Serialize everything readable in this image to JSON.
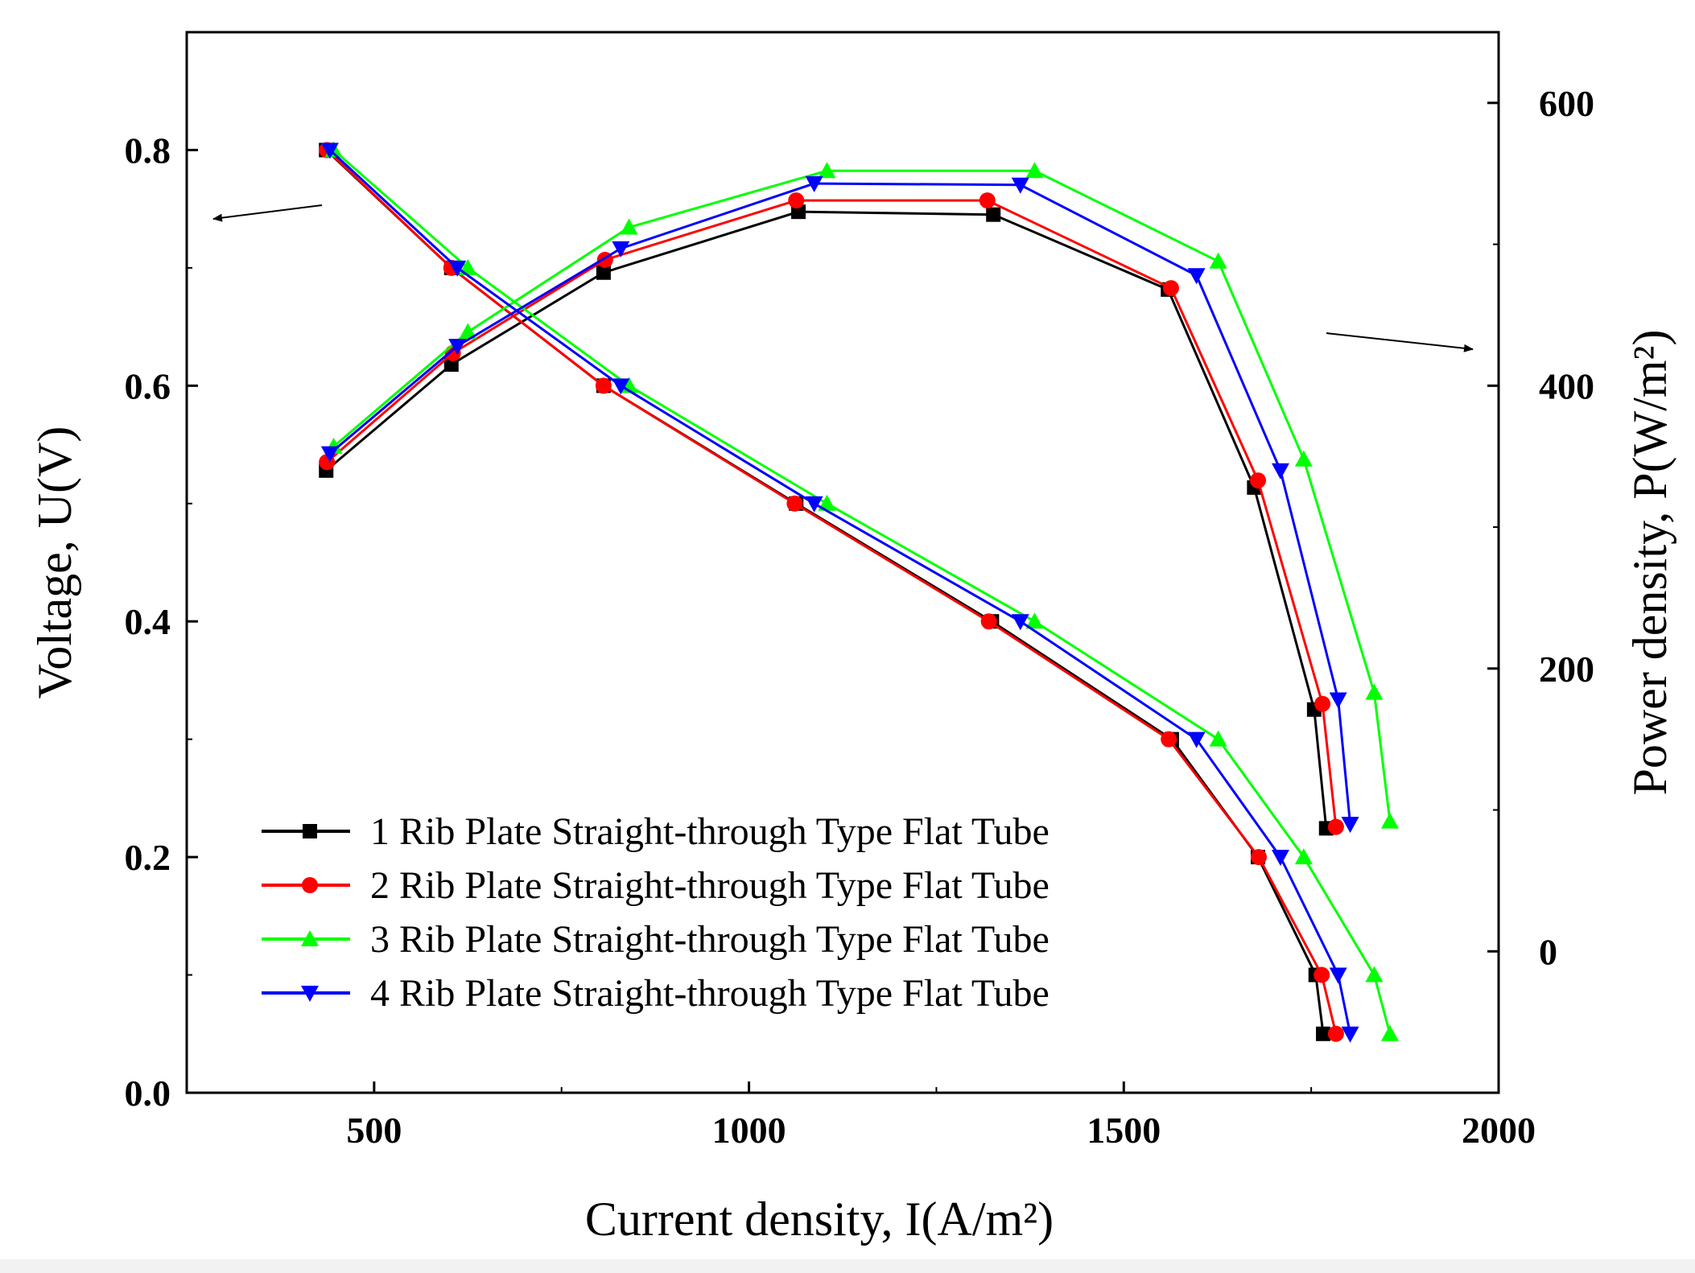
{
  "chart_data": {
    "type": "line",
    "xlabel": "Current density, I(A/m²)",
    "ylabel_left": "Voltage, U(V)",
    "ylabel_right": "Power density, P(W/m²)",
    "xlim": [
      250,
      2000
    ],
    "ylim_left": [
      0,
      0.9
    ],
    "ylim_right": [
      -100,
      650
    ],
    "x_ticks": [
      500,
      1000,
      1500,
      2000
    ],
    "y_left_ticks": [
      0.0,
      0.2,
      0.4,
      0.6,
      0.8
    ],
    "y_right_ticks": [
      0,
      200,
      400,
      600
    ],
    "x_tick_labels": [
      "500",
      "1000",
      "1500",
      "2000"
    ],
    "y_left_tick_labels": [
      "0.0",
      "0.2",
      "0.4",
      "0.6",
      "0.8"
    ],
    "y_right_tick_labels": [
      "0",
      "200",
      "400",
      "600"
    ],
    "annotations": [
      "arrow pointing to left axis (voltage curves)",
      "arrow pointing to right axis (power density curves)"
    ],
    "legend_position": "bottom-left",
    "series": [
      {
        "name": "1 Rib Plate Straight-through Type Flat Tube",
        "color": "#000000",
        "marker": "square",
        "voltage": {
          "x": [
            436,
            603,
            806,
            1063,
            1324,
            1564,
            1679,
            1756,
            1766
          ],
          "y": [
            0.8,
            0.7,
            0.6,
            0.5,
            0.4,
            0.3,
            0.2,
            0.1,
            0.05
          ]
        },
        "power": {
          "x": [
            436,
            603,
            806,
            1066,
            1326,
            1559,
            1674,
            1754,
            1770
          ],
          "y": [
            340,
            415,
            480,
            523,
            521,
            468,
            328,
            171,
            87
          ]
        }
      },
      {
        "name": "2 Rib Plate Straight-through Type Flat Tube",
        "color": "#ff0000",
        "marker": "circle",
        "voltage": {
          "x": [
            437,
            603,
            806,
            1061,
            1320,
            1560,
            1680,
            1764,
            1783
          ],
          "y": [
            0.8,
            0.7,
            0.6,
            0.5,
            0.4,
            0.3,
            0.2,
            0.1,
            0.05
          ]
        },
        "power": {
          "x": [
            437,
            605,
            808,
            1063,
            1318,
            1563,
            1679,
            1765,
            1783
          ],
          "y": [
            346,
            423,
            489,
            531,
            531,
            469,
            333,
            175,
            88
          ]
        }
      },
      {
        "name": "3 Rib Plate Straight-through Type Flat Tube",
        "color": "#00ff00",
        "marker": "triangle-up",
        "voltage": {
          "x": [
            446,
            625,
            840,
            1104,
            1381,
            1626,
            1740,
            1834,
            1855
          ],
          "y": [
            0.8,
            0.7,
            0.6,
            0.5,
            0.4,
            0.3,
            0.2,
            0.1,
            0.05
          ]
        },
        "power": {
          "x": [
            446,
            625,
            840,
            1104,
            1381,
            1626,
            1740,
            1834,
            1855
          ],
          "y": [
            357,
            438,
            512,
            552,
            552,
            488,
            348,
            183,
            92
          ]
        }
      },
      {
        "name": "4 Rib Plate Straight-through Type Flat Tube",
        "color": "#0000ff",
        "marker": "triangle-down",
        "voltage": {
          "x": [
            441,
            611,
            829,
            1087,
            1362,
            1597,
            1709,
            1786,
            1802
          ],
          "y": [
            0.8,
            0.7,
            0.6,
            0.5,
            0.4,
            0.3,
            0.2,
            0.1,
            0.05
          ]
        },
        "power": {
          "x": [
            441,
            611,
            829,
            1087,
            1362,
            1597,
            1709,
            1786,
            1802
          ],
          "y": [
            352,
            428,
            497,
            543,
            542,
            478,
            340,
            178,
            90
          ]
        }
      }
    ]
  }
}
